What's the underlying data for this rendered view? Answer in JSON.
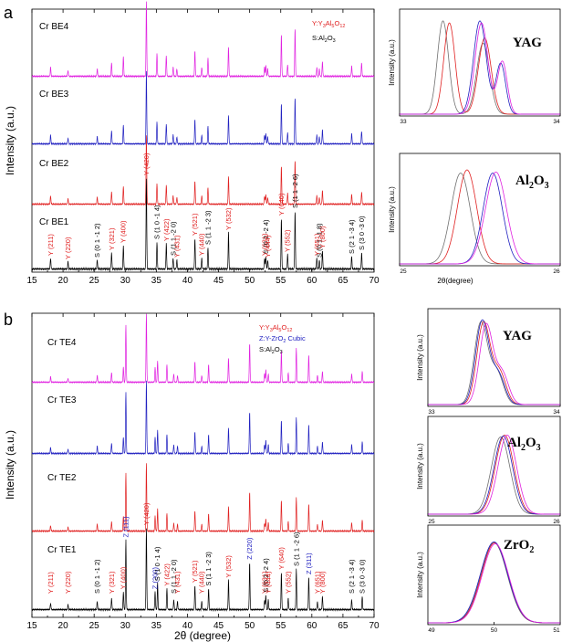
{
  "chart_data": [
    {
      "id": "main_a",
      "type": "line",
      "panel_label": "a",
      "xlabel": "",
      "ylabel": "Intensity (a.u.)",
      "xlim": [
        15,
        70
      ],
      "xticks": [
        "15",
        "20",
        "25",
        "30",
        "35",
        "40",
        "45",
        "50",
        "55",
        "60",
        "65",
        "70"
      ],
      "legend": [
        "Y:Y3Al5O12",
        "S:Al2O3"
      ],
      "legend_colors": [
        "#e02020",
        "#000000"
      ],
      "sample_colors": [
        "#e020e0",
        "#2020c0",
        "#e02020",
        "#000000"
      ],
      "sample_labels": [
        "Cr BE4",
        "Cr BE3",
        "Cr BE2",
        "Cr BE1"
      ],
      "peaks": [
        {
          "x": 18.0,
          "h": 0.12,
          "label": "Y (211)",
          "phase": "Y"
        },
        {
          "x": 20.8,
          "h": 0.08,
          "label": "Y (220)",
          "phase": "Y"
        },
        {
          "x": 25.5,
          "h": 0.1,
          "label": "S (0 1 -1 2)",
          "phase": "S"
        },
        {
          "x": 27.8,
          "h": 0.18,
          "label": "Y (321)",
          "phase": "Y"
        },
        {
          "x": 29.7,
          "h": 0.26,
          "label": "Y (400)",
          "phase": "Y"
        },
        {
          "x": 33.4,
          "h": 1.0,
          "label": "Y (420)",
          "phase": "Y"
        },
        {
          "x": 35.1,
          "h": 0.3,
          "label": "S (1 0 -1 4)",
          "phase": "S"
        },
        {
          "x": 36.6,
          "h": 0.28,
          "label": "Y (422)",
          "phase": "Y"
        },
        {
          "x": 37.7,
          "h": 0.12,
          "label": "S (1 1 -2 0)",
          "phase": "S"
        },
        {
          "x": 38.3,
          "h": 0.1,
          "label": "Y (431)",
          "phase": "Y"
        },
        {
          "x": 41.2,
          "h": 0.34,
          "label": "Y (521)",
          "phase": "Y"
        },
        {
          "x": 42.3,
          "h": 0.12,
          "label": "Y (440)",
          "phase": "Y"
        },
        {
          "x": 43.3,
          "h": 0.24,
          "label": "S (1 1 -2 3)",
          "phase": "S"
        },
        {
          "x": 46.6,
          "h": 0.4,
          "label": "Y (532)",
          "phase": "Y"
        },
        {
          "x": 52.4,
          "h": 0.12,
          "label": "Y (631)",
          "phase": "Y"
        },
        {
          "x": 52.6,
          "h": 0.14,
          "label": "S (0 2 -2 4)",
          "phase": "S"
        },
        {
          "x": 52.9,
          "h": 0.1,
          "label": "Y (444)",
          "phase": "Y"
        },
        {
          "x": 55.1,
          "h": 0.56,
          "label": "Y (640)",
          "phase": "Y"
        },
        {
          "x": 56.1,
          "h": 0.16,
          "label": "Y (552)",
          "phase": "Y"
        },
        {
          "x": 57.3,
          "h": 0.64,
          "label": "S (1 1 -2 6)",
          "phase": "S"
        },
        {
          "x": 60.8,
          "h": 0.12,
          "label": "Y (651)",
          "phase": "Y"
        },
        {
          "x": 61.2,
          "h": 0.1,
          "label": "S (0 1 -1 8)",
          "phase": "S"
        },
        {
          "x": 61.7,
          "h": 0.2,
          "label": "Y (800)",
          "phase": "Y"
        },
        {
          "x": 66.4,
          "h": 0.14,
          "label": "S (2 1 -3 4)",
          "phase": "S"
        },
        {
          "x": 68.0,
          "h": 0.18,
          "label": "S (3 0 -3 0)",
          "phase": "S"
        }
      ]
    },
    {
      "id": "main_b",
      "type": "line",
      "panel_label": "b",
      "xlabel": "2θ (degree)",
      "ylabel": "Intensity (a.u.)",
      "xlim": [
        15,
        70
      ],
      "xticks": [
        "15",
        "20",
        "25",
        "30",
        "35",
        "40",
        "45",
        "50",
        "55",
        "60",
        "65",
        "70"
      ],
      "legend": [
        "Y:Y3Al5O12",
        "Z:Y-ZrO2 Cubic",
        "S:Al2O3"
      ],
      "legend_colors": [
        "#e02020",
        "#2020c0",
        "#000000"
      ],
      "sample_colors": [
        "#e020e0",
        "#2020c0",
        "#e02020",
        "#000000"
      ],
      "sample_labels": [
        "Cr TE4",
        "Cr TE3",
        "Cr TE2",
        "Cr TE1"
      ],
      "peaks": [
        {
          "x": 18.0,
          "h": 0.08,
          "label": "Y (211)",
          "phase": "Y"
        },
        {
          "x": 20.8,
          "h": 0.06,
          "label": "Y (220)",
          "phase": "Y"
        },
        {
          "x": 25.5,
          "h": 0.1,
          "label": "S (0 1 -1 2)",
          "phase": "S"
        },
        {
          "x": 27.8,
          "h": 0.14,
          "label": "Y (321)",
          "phase": "Y"
        },
        {
          "x": 29.7,
          "h": 0.22,
          "label": "Y (400)",
          "phase": "Y"
        },
        {
          "x": 30.1,
          "h": 0.85,
          "label": "Z (111)",
          "phase": "Z"
        },
        {
          "x": 33.4,
          "h": 1.0,
          "label": "Y (420)",
          "phase": "Y"
        },
        {
          "x": 34.8,
          "h": 0.22,
          "label": "Z (200)",
          "phase": "Z"
        },
        {
          "x": 35.2,
          "h": 0.32,
          "label": "S (1 0 -1 4)",
          "phase": "S"
        },
        {
          "x": 36.7,
          "h": 0.26,
          "label": "Y (422)",
          "phase": "Y"
        },
        {
          "x": 37.8,
          "h": 0.12,
          "label": "S (1 1 -2 0)",
          "phase": "S"
        },
        {
          "x": 38.4,
          "h": 0.1,
          "label": "Y (431)",
          "phase": "Y"
        },
        {
          "x": 41.2,
          "h": 0.3,
          "label": "Y (521)",
          "phase": "Y"
        },
        {
          "x": 42.3,
          "h": 0.1,
          "label": "Y (440)",
          "phase": "Y"
        },
        {
          "x": 43.4,
          "h": 0.26,
          "label": "S (1 1 -2 3)",
          "phase": "S"
        },
        {
          "x": 46.6,
          "h": 0.36,
          "label": "Y (532)",
          "phase": "Y"
        },
        {
          "x": 50.0,
          "h": 0.58,
          "label": "Z (220)",
          "phase": "Z"
        },
        {
          "x": 52.4,
          "h": 0.12,
          "label": "Y (631)",
          "phase": "Y"
        },
        {
          "x": 52.6,
          "h": 0.18,
          "label": "S (0 2 -2 4)",
          "phase": "S"
        },
        {
          "x": 53.0,
          "h": 0.12,
          "label": "Y (444)",
          "phase": "Y"
        },
        {
          "x": 55.1,
          "h": 0.46,
          "label": "Y (640)",
          "phase": "Y"
        },
        {
          "x": 56.2,
          "h": 0.14,
          "label": "Y (552)",
          "phase": "Y"
        },
        {
          "x": 57.5,
          "h": 0.5,
          "label": "S (1 1 -2 6)",
          "phase": "S"
        },
        {
          "x": 59.5,
          "h": 0.4,
          "label": "Z (311)",
          "phase": "Z"
        },
        {
          "x": 60.9,
          "h": 0.1,
          "label": "Y (651)",
          "phase": "Y"
        },
        {
          "x": 61.7,
          "h": 0.16,
          "label": "Y (800)",
          "phase": "Y"
        },
        {
          "x": 66.4,
          "h": 0.12,
          "label": "S (2 1 -3 4)",
          "phase": "S"
        },
        {
          "x": 68.1,
          "h": 0.16,
          "label": "S (3 0 -3 0)",
          "phase": "S"
        }
      ]
    },
    {
      "id": "inset_a_yag",
      "type": "line",
      "title": "YAG",
      "ylabel": "Intensity (a.u.)",
      "xlim": [
        33,
        34
      ],
      "xticks": [
        "33",
        "34"
      ],
      "series": [
        {
          "name": "Cr BE1",
          "color": "#707070",
          "peaks": [
            [
              33.27,
              0.92,
              0.035
            ],
            [
              33.52,
              0.7,
              0.04
            ]
          ]
        },
        {
          "name": "Cr BE2",
          "color": "#e02020",
          "peaks": [
            [
              33.31,
              0.9,
              0.035
            ],
            [
              33.53,
              0.75,
              0.04
            ]
          ]
        },
        {
          "name": "Cr BE3",
          "color": "#2020c0",
          "peaks": [
            [
              33.5,
              0.92,
              0.04
            ],
            [
              33.63,
              0.5,
              0.03
            ]
          ]
        },
        {
          "name": "Cr BE4",
          "color": "#e020e0",
          "peaks": [
            [
              33.51,
              0.9,
              0.04
            ],
            [
              33.64,
              0.52,
              0.03
            ]
          ]
        }
      ]
    },
    {
      "id": "inset_a_al2o3",
      "type": "line",
      "title": "Al2O3",
      "ylabel": "Intensity (a.u.)",
      "xlabel": "2θ(degree)",
      "xlim": [
        25,
        26
      ],
      "xticks": [
        "25",
        "26"
      ],
      "series": [
        {
          "name": "Cr BE1",
          "color": "#707070",
          "peaks": [
            [
              25.38,
              0.85,
              0.06
            ]
          ]
        },
        {
          "name": "Cr BE2",
          "color": "#e02020",
          "peaks": [
            [
              25.42,
              0.88,
              0.06
            ]
          ]
        },
        {
          "name": "Cr BE3",
          "color": "#2020c0",
          "peaks": [
            [
              25.58,
              0.85,
              0.06
            ]
          ]
        },
        {
          "name": "Cr BE4",
          "color": "#e020e0",
          "peaks": [
            [
              25.6,
              0.86,
              0.065
            ]
          ]
        }
      ]
    },
    {
      "id": "inset_b_yag",
      "type": "line",
      "title": "YAG",
      "ylabel": "Intensity (a.u.)",
      "xlim": [
        33,
        34
      ],
      "xticks": [
        "33",
        "34"
      ],
      "series": [
        {
          "name": "Cr TE1",
          "color": "#707070",
          "peaks": [
            [
              33.4,
              0.88,
              0.05
            ],
            [
              33.52,
              0.35,
              0.05
            ]
          ]
        },
        {
          "name": "Cr TE2",
          "color": "#e02020",
          "peaks": [
            [
              33.42,
              0.88,
              0.05
            ],
            [
              33.54,
              0.35,
              0.05
            ]
          ]
        },
        {
          "name": "Cr TE3",
          "color": "#2020c0",
          "peaks": [
            [
              33.41,
              0.9,
              0.05
            ],
            [
              33.53,
              0.33,
              0.05
            ]
          ]
        },
        {
          "name": "Cr TE4",
          "color": "#e020e0",
          "peaks": [
            [
              33.44,
              0.86,
              0.05
            ],
            [
              33.56,
              0.34,
              0.05
            ]
          ]
        }
      ]
    },
    {
      "id": "inset_b_al2o3",
      "type": "line",
      "title": "Al2O3",
      "ylabel": "Intensity (a.u.)",
      "xlim": [
        25,
        26
      ],
      "xticks": [
        "25",
        "26"
      ],
      "series": [
        {
          "name": "Cr TE1",
          "color": "#707070",
          "peaks": [
            [
              25.55,
              0.82,
              0.07
            ]
          ]
        },
        {
          "name": "Cr TE2",
          "color": "#e02020",
          "peaks": [
            [
              25.58,
              0.84,
              0.07
            ]
          ]
        },
        {
          "name": "Cr TE3",
          "color": "#2020c0",
          "peaks": [
            [
              25.57,
              0.83,
              0.07
            ]
          ]
        },
        {
          "name": "Cr TE4",
          "color": "#e020e0",
          "peaks": [
            [
              25.6,
              0.84,
              0.07
            ]
          ]
        }
      ]
    },
    {
      "id": "inset_b_zro2",
      "type": "line",
      "title": "ZrO2",
      "ylabel": "Intensity (a.u.)",
      "xlim": [
        49,
        51
      ],
      "xticks": [
        "49",
        "50",
        "51"
      ],
      "series": [
        {
          "name": "Cr TE1",
          "color": "#707070",
          "peaks": [
            [
              50.0,
              0.85,
              0.2
            ]
          ]
        },
        {
          "name": "Cr TE2",
          "color": "#e02020",
          "peaks": [
            [
              50.01,
              0.85,
              0.2
            ]
          ]
        },
        {
          "name": "Cr TE3",
          "color": "#2020c0",
          "peaks": [
            [
              50.0,
              0.86,
              0.205
            ]
          ]
        },
        {
          "name": "Cr TE4",
          "color": "#e020e0",
          "peaks": [
            [
              50.02,
              0.84,
              0.2
            ]
          ]
        }
      ]
    }
  ]
}
